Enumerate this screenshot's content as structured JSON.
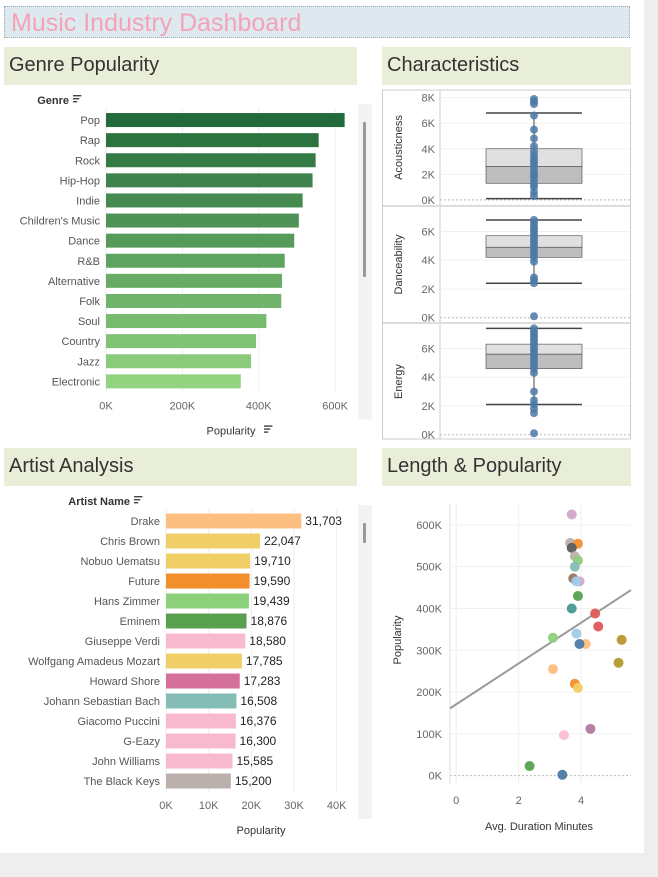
{
  "title": "Music Industry Dashboard",
  "sections": {
    "genre": "Genre Popularity",
    "characteristics": "Characteristics",
    "artist": "Artist Analysis",
    "length": "Length & Popularity"
  },
  "colors": {
    "accent_title": "#f4a3b7",
    "section_bg": "#e8eed8",
    "genre_gradient": [
      "#236b3b",
      "#92d37f"
    ]
  },
  "chart_data": [
    {
      "id": "genre",
      "type": "bar",
      "orientation": "horizontal",
      "title": "Genre Popularity",
      "header_label": "Genre",
      "xlabel": "Popularity",
      "categories": [
        "Pop",
        "Rap",
        "Rock",
        "Hip-Hop",
        "Indie",
        "Children's Music",
        "Dance",
        "R&B",
        "Alternative",
        "Folk",
        "Soul",
        "Country",
        "Jazz",
        "Electronic"
      ],
      "values": [
        625000,
        557000,
        549000,
        541000,
        515000,
        505000,
        493000,
        468000,
        461000,
        459000,
        420000,
        393000,
        380000,
        353000
      ],
      "xlim": [
        0,
        660000
      ],
      "xticks": [
        0,
        200000,
        400000,
        600000
      ],
      "xtick_labels": [
        "0K",
        "200K",
        "400K",
        "600K"
      ],
      "grid": true
    },
    {
      "id": "characteristics",
      "type": "box",
      "title": "Characteristics",
      "panels": [
        {
          "label": "Acousticness",
          "ylim": [
            -400,
            8600
          ],
          "yticks": [
            0,
            2000,
            4000,
            6000,
            8000
          ],
          "ytick_labels": [
            "0K",
            "2K",
            "4K",
            "6K",
            "8K"
          ],
          "whisker_low": 100,
          "q1": 1300,
          "median": 2600,
          "q3": 4000,
          "whisker_high": 6800,
          "points": [
            7900,
            7700,
            7500,
            6600,
            5500,
            4800,
            4200,
            3800,
            3500,
            3200,
            3000,
            2800,
            2500,
            2200,
            2000,
            1800,
            1500,
            1200,
            1000,
            600,
            300
          ]
        },
        {
          "label": "Danceability",
          "ylim": [
            -300,
            7700
          ],
          "yticks": [
            0,
            2000,
            4000,
            6000
          ],
          "ytick_labels": [
            "0K",
            "2K",
            "4K",
            "6K"
          ],
          "whisker_low": 2400,
          "q1": 4200,
          "median": 4900,
          "q3": 5700,
          "whisker_high": 6800,
          "points": [
            6800,
            6600,
            6400,
            6200,
            6000,
            5800,
            5600,
            5400,
            5200,
            5000,
            4800,
            4600,
            4400,
            4200,
            3900,
            2800,
            2600,
            2400,
            100
          ]
        },
        {
          "label": "Energy",
          "ylim": [
            -300,
            7700
          ],
          "yticks": [
            0,
            2000,
            4000,
            6000
          ],
          "ytick_labels": [
            "0K",
            "2K",
            "4K",
            "6K"
          ],
          "whisker_low": 2100,
          "q1": 4600,
          "median": 5600,
          "q3": 6300,
          "whisker_high": 7400,
          "points": [
            7400,
            7200,
            7000,
            6800,
            6600,
            6400,
            6200,
            6000,
            5800,
            5600,
            5400,
            5200,
            5000,
            4800,
            4600,
            4300,
            3000,
            2400,
            2100,
            1800,
            1500,
            100
          ]
        }
      ]
    },
    {
      "id": "artist",
      "type": "bar",
      "orientation": "horizontal",
      "title": "Artist Analysis",
      "header_label": "Artist Name",
      "xlabel": "Popularity",
      "categories": [
        "Drake",
        "Chris Brown",
        "Nobuo Uematsu",
        "Future",
        "Hans Zimmer",
        "Eminem",
        "Giuseppe Verdi",
        "Wolfgang Amadeus Mozart",
        "Howard Shore",
        "Johann Sebastian Bach",
        "Giacomo Puccini",
        "G-Eazy",
        "John Williams",
        "The Black Keys"
      ],
      "values": [
        31703,
        22047,
        19710,
        19590,
        19439,
        18876,
        18580,
        17785,
        17283,
        16508,
        16376,
        16300,
        15585,
        15200
      ],
      "value_labels": [
        "31,703",
        "22,047",
        "19,710",
        "19,590",
        "19,439",
        "18,876",
        "18,580",
        "17,785",
        "17,283",
        "16,508",
        "16,376",
        "16,300",
        "15,585",
        "15,200"
      ],
      "colors": [
        "#fdbf7f",
        "#f0cf66",
        "#f0cf66",
        "#f28e2b",
        "#8dd07b",
        "#59a14f",
        "#f8b9cf",
        "#f0cf66",
        "#d4709a",
        "#86bcb6",
        "#f8b9cf",
        "#f8b9cf",
        "#f8b9cf",
        "#bab0ac"
      ],
      "xlim": [
        0,
        45000
      ],
      "xticks": [
        0,
        10000,
        20000,
        30000,
        40000
      ],
      "xtick_labels": [
        "0K",
        "10K",
        "20K",
        "30K",
        "40K"
      ],
      "grid": true
    },
    {
      "id": "length",
      "type": "scatter",
      "title": "Length & Popularity",
      "xlabel": "Avg. Duration Minutes",
      "ylabel": "Popularity",
      "xlim": [
        -0.2,
        5.6
      ],
      "ylim": [
        -20000,
        650000
      ],
      "xticks": [
        0,
        2,
        4
      ],
      "xtick_labels": [
        "0",
        "2",
        "4"
      ],
      "yticks": [
        0,
        100000,
        200000,
        300000,
        400000,
        500000,
        600000
      ],
      "ytick_labels": [
        "0K",
        "100K",
        "200K",
        "300K",
        "400K",
        "500K",
        "600K"
      ],
      "trend_line": {
        "x1": -0.2,
        "y1": 161000,
        "x2": 5.6,
        "y2": 444000
      },
      "points": [
        {
          "x": 3.7,
          "y": 625000,
          "color": "#d4a6c8"
        },
        {
          "x": 3.65,
          "y": 557000,
          "color": "#bab0ac"
        },
        {
          "x": 3.9,
          "y": 555000,
          "color": "#f28e2b"
        },
        {
          "x": 3.7,
          "y": 545000,
          "color": "#5b5b5b"
        },
        {
          "x": 3.8,
          "y": 525000,
          "color": "#bab0ac"
        },
        {
          "x": 3.9,
          "y": 515000,
          "color": "#8dd07b"
        },
        {
          "x": 3.8,
          "y": 500000,
          "color": "#86bcb6"
        },
        {
          "x": 3.75,
          "y": 472000,
          "color": "#9c755f"
        },
        {
          "x": 3.95,
          "y": 465000,
          "color": "#d4a6c8"
        },
        {
          "x": 3.85,
          "y": 465000,
          "color": "#a0cbe8"
        },
        {
          "x": 3.9,
          "y": 430000,
          "color": "#59a14f"
        },
        {
          "x": 3.7,
          "y": 400000,
          "color": "#499894"
        },
        {
          "x": 4.45,
          "y": 388000,
          "color": "#e15759"
        },
        {
          "x": 4.55,
          "y": 357000,
          "color": "#e15759"
        },
        {
          "x": 3.85,
          "y": 340000,
          "color": "#a0cbe8"
        },
        {
          "x": 3.1,
          "y": 330000,
          "color": "#8dd07b"
        },
        {
          "x": 5.3,
          "y": 325000,
          "color": "#b6992d"
        },
        {
          "x": 4.15,
          "y": 315000,
          "color": "#ffbe7d"
        },
        {
          "x": 3.95,
          "y": 315000,
          "color": "#4e79a7"
        },
        {
          "x": 5.2,
          "y": 270000,
          "color": "#b6992d"
        },
        {
          "x": 3.1,
          "y": 255000,
          "color": "#ffbe7d"
        },
        {
          "x": 3.8,
          "y": 220000,
          "color": "#f28e2b"
        },
        {
          "x": 3.9,
          "y": 210000,
          "color": "#f1ce63"
        },
        {
          "x": 4.3,
          "y": 112000,
          "color": "#b07aa1"
        },
        {
          "x": 3.45,
          "y": 97000,
          "color": "#fabfd2"
        },
        {
          "x": 2.35,
          "y": 23000,
          "color": "#59a14f"
        },
        {
          "x": 3.4,
          "y": 2000,
          "color": "#4e79a7"
        }
      ],
      "grid": true
    }
  ]
}
